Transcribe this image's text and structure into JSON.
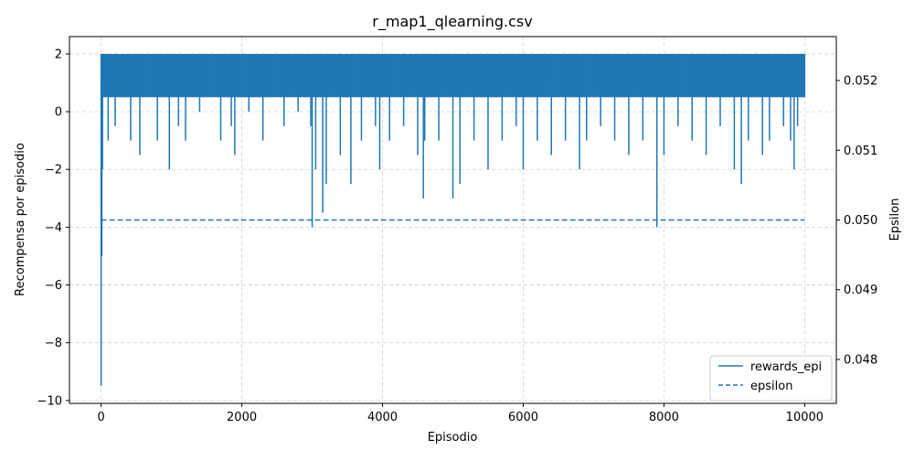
{
  "chart_data": {
    "type": "line",
    "title": "r_map1_qlearning.csv",
    "xlabel": "Episodio",
    "ylabel": "Recompensa por episodio",
    "y2label": "Epsilon",
    "xlim": [
      -450,
      10450
    ],
    "ylim": [
      -10.1,
      2.6
    ],
    "y2lim": [
      0.04737,
      0.05263
    ],
    "x_ticks": [
      0,
      2000,
      4000,
      6000,
      8000,
      10000
    ],
    "x_tick_labels": [
      "0",
      "2000",
      "4000",
      "6000",
      "8000",
      "10000"
    ],
    "y_ticks": [
      2,
      0,
      -2,
      -4,
      -6,
      -8,
      -10
    ],
    "y_tick_labels": [
      "2",
      "0",
      "−2",
      "−4",
      "−6",
      "−8",
      "−10"
    ],
    "y2_ticks": [
      0.052,
      0.051,
      0.05,
      0.049,
      0.048
    ],
    "y2_tick_labels": [
      "0.052",
      "0.051",
      "0.050",
      "0.049",
      "0.048"
    ],
    "grid": true,
    "legend_position": "lower-right",
    "series": [
      {
        "name": "rewards_epi",
        "axis": "left",
        "style": "solid",
        "color": "#1f77b4",
        "x": [
          0,
          5,
          10,
          15,
          20,
          30,
          40,
          60,
          80,
          100,
          150,
          200,
          250,
          300,
          360,
          420,
          480,
          550,
          600,
          700,
          800,
          900,
          970,
          1000,
          1100,
          1200,
          1300,
          1400,
          1500,
          1600,
          1700,
          1800,
          1850,
          1900,
          2000,
          2100,
          2200,
          2300,
          2400,
          2500,
          2600,
          2700,
          2800,
          2900,
          2980,
          3000,
          3050,
          3100,
          3150,
          3200,
          3300,
          3400,
          3500,
          3550,
          3600,
          3700,
          3800,
          3900,
          3960,
          4000,
          4100,
          4200,
          4300,
          4400,
          4500,
          4580,
          4600,
          4650,
          4700,
          4800,
          4900,
          5000,
          5100,
          5200,
          5300,
          5400,
          5500,
          5600,
          5700,
          5800,
          5900,
          6000,
          6100,
          6200,
          6300,
          6400,
          6500,
          6600,
          6700,
          6800,
          6900,
          7000,
          7100,
          7200,
          7300,
          7400,
          7500,
          7600,
          7700,
          7800,
          7880,
          7900,
          8000,
          8100,
          8200,
          8300,
          8400,
          8500,
          8600,
          8700,
          8800,
          8900,
          9000,
          9100,
          9200,
          9300,
          9400,
          9500,
          9600,
          9700,
          9800,
          9850,
          9900,
          9950,
          10000
        ],
        "values": [
          -9.5,
          -2.0,
          -5.0,
          2.0,
          -2.0,
          1.0,
          2.0,
          1.0,
          2.0,
          -1.0,
          1.0,
          -0.5,
          2.0,
          0.5,
          2.0,
          -1.0,
          2.0,
          -1.5,
          1.0,
          2.0,
          -1.0,
          0.5,
          -2.0,
          2.0,
          -0.5,
          -1.0,
          2.0,
          0.0,
          1.0,
          2.0,
          -1.0,
          0.5,
          -0.5,
          -1.5,
          2.0,
          0.0,
          1.0,
          -1.0,
          0.5,
          2.0,
          -0.5,
          1.0,
          0.0,
          2.0,
          -0.5,
          -4.0,
          -2.0,
          1.0,
          -3.5,
          -2.5,
          1.0,
          -1.5,
          0.5,
          -2.5,
          2.0,
          -1.0,
          0.5,
          -0.5,
          -2.0,
          1.0,
          -1.0,
          2.0,
          -0.5,
          1.0,
          -1.5,
          -3.0,
          -1.0,
          0.5,
          2.0,
          -1.0,
          1.0,
          -3.0,
          -2.5,
          1.0,
          -1.0,
          0.5,
          -2.0,
          2.0,
          -1.0,
          1.0,
          -0.5,
          -2.0,
          0.5,
          -1.0,
          1.0,
          -1.5,
          2.0,
          -1.0,
          0.5,
          -2.0,
          -1.0,
          1.0,
          -0.5,
          2.0,
          -1.0,
          0.5,
          -1.5,
          1.0,
          -1.0,
          0.5,
          2.0,
          -4.0,
          -1.5,
          1.0,
          -0.5,
          2.0,
          -1.0,
          0.5,
          -1.5,
          1.0,
          -0.5,
          2.0,
          -2.0,
          -2.5,
          -1.0,
          0.5,
          -1.5,
          -1.0,
          1.0,
          -0.5,
          -1.0,
          -2.0,
          -0.5,
          2.0,
          0.5
        ]
      },
      {
        "name": "epsilon",
        "axis": "right",
        "style": "dashed",
        "color": "#1f77b4",
        "x": [
          0,
          10000
        ],
        "values": [
          0.05,
          0.05
        ]
      }
    ]
  }
}
